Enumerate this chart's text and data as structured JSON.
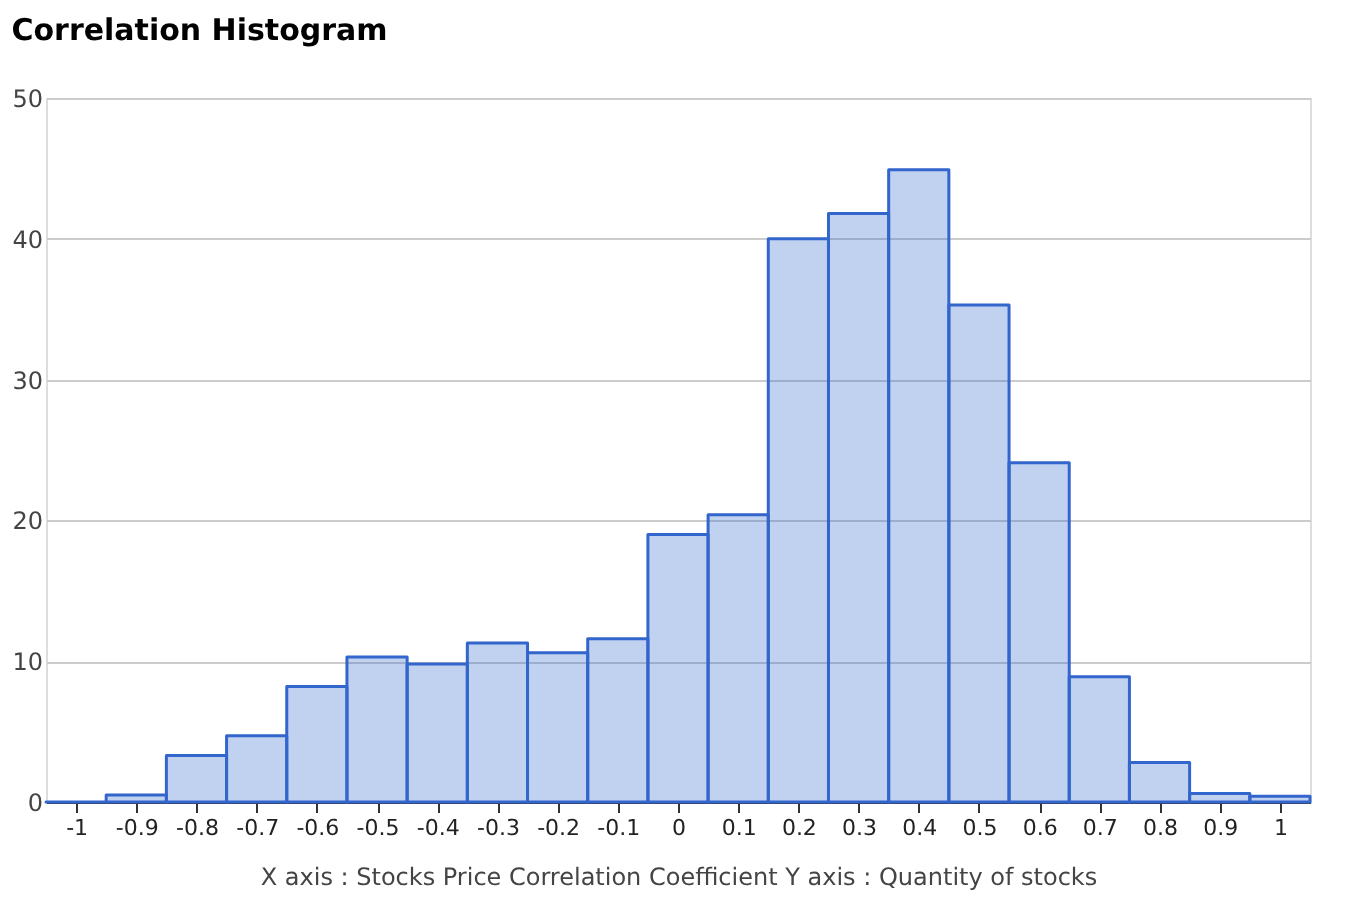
{
  "chart_data": {
    "type": "histogram",
    "title": "Correlation Histogram",
    "xlabel": "X axis : Stocks Price Correlation Coefficient  Y axis : Quantity of stocks",
    "bins": [
      -1.05,
      -0.95,
      -0.85,
      -0.75,
      -0.65,
      -0.55,
      -0.45,
      -0.35,
      -0.25,
      -0.15,
      -0.05,
      0.05,
      0.15,
      0.25,
      0.35,
      0.45,
      0.55,
      0.65,
      0.75,
      0.85,
      0.95,
      1.05
    ],
    "values": [
      0,
      0.5,
      3.3,
      4.7,
      8.2,
      10.3,
      9.8,
      11.3,
      10.6,
      11.6,
      19,
      20.4,
      40,
      41.8,
      44.9,
      35.3,
      24.1,
      8.9,
      2.8,
      0.6,
      0.4
    ],
    "color": "#3366cc",
    "xlim": [
      -1.05,
      1.05
    ],
    "xticks": [
      -1,
      -0.9,
      -0.8,
      -0.7,
      -0.6,
      -0.5,
      -0.4,
      -0.3,
      -0.2,
      -0.1,
      0,
      0.1,
      0.2,
      0.3,
      0.4,
      0.5,
      0.6,
      0.7,
      0.8,
      0.9,
      1
    ],
    "ylim": [
      0,
      50
    ],
    "yticks": [
      0,
      10,
      20,
      30,
      40,
      50
    ],
    "grid": "y",
    "legend": false
  }
}
